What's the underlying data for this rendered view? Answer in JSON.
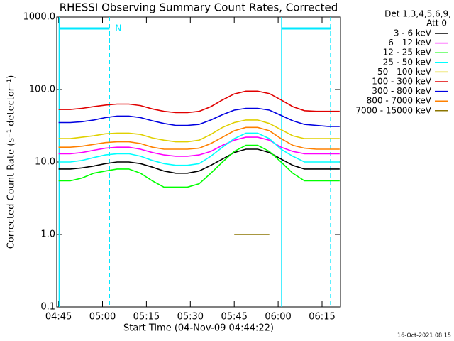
{
  "chart_data": {
    "type": "line",
    "title": "RHESSI Observing Summary Count Rates, Corrected",
    "x_label": "Start Time (04-Nov-09 04:44:22)",
    "y_label": "Corrected Count Rate (s⁻¹ detector⁻¹)",
    "legend_header": [
      "Det 1,3,4,5,6,9,",
      "Att 0"
    ],
    "footer": "16-Oct-2021 08:15",
    "log_scale_y": true,
    "xlim": [
      284.37,
      381.3
    ],
    "xticks": [
      {
        "value": 285,
        "label": "04:45"
      },
      {
        "value": 300,
        "label": "05:00"
      },
      {
        "value": 315,
        "label": "05:15"
      },
      {
        "value": 330,
        "label": "05:30"
      },
      {
        "value": 345,
        "label": "05:45"
      },
      {
        "value": 360,
        "label": "06:00"
      },
      {
        "value": 375,
        "label": "06:15"
      }
    ],
    "ylim": [
      0.1,
      1000
    ],
    "yticks": [
      0.1,
      {
        "value": 1,
        "label": "1.0"
      },
      {
        "value": 10,
        "label": "10.0"
      },
      {
        "value": 100,
        "label": "100.0"
      },
      {
        "value": 1000,
        "label": "1000.0"
      }
    ],
    "night_label": "N",
    "night_color": "#00e8ff",
    "night_intervals": [
      {
        "start": 285.2,
        "end": 302.4
      },
      {
        "start": 361.2,
        "end": 377.9
      }
    ],
    "x": [
      285,
      289,
      293,
      297,
      301,
      305,
      309,
      313,
      317,
      321,
      325,
      329,
      333,
      337,
      341,
      345,
      349,
      353,
      357,
      361,
      365,
      369,
      373,
      377,
      381
    ],
    "series": [
      {
        "name": "3 - 6 keV",
        "color": "#000000",
        "values": [
          8,
          8,
          8.3,
          8.8,
          9.5,
          10,
          10,
          9.5,
          8.5,
          7.5,
          7,
          7,
          7.5,
          9,
          11,
          13.5,
          15,
          15,
          13.5,
          11,
          9,
          8,
          8,
          8,
          8
        ]
      },
      {
        "name": "6 - 12 keV",
        "color": "#ff00ff",
        "values": [
          13,
          13,
          13.5,
          14.5,
          15.5,
          16,
          16,
          15,
          13.5,
          12.5,
          12,
          12,
          12.5,
          14,
          17,
          20,
          22,
          22,
          20,
          16,
          14,
          13,
          13,
          13,
          13
        ]
      },
      {
        "name": "12 - 25 keV",
        "color": "#00ff00",
        "values": [
          5.5,
          5.5,
          6,
          7,
          7.5,
          8,
          8,
          7,
          5.5,
          4.5,
          4.5,
          4.5,
          5,
          7,
          10,
          14,
          17,
          17,
          14,
          10,
          7,
          5.5,
          5.5,
          5.5,
          5.5
        ]
      },
      {
        "name": "25 - 50 keV",
        "color": "#00ffff",
        "values": [
          10,
          10,
          10.5,
          11.5,
          12.5,
          13,
          13,
          12,
          10.5,
          9.5,
          9,
          9,
          9.5,
          12,
          16,
          21,
          25,
          25,
          21,
          15,
          12,
          10,
          10,
          10,
          10
        ]
      },
      {
        "name": "50 - 100 keV",
        "color": "#e0d000",
        "values": [
          21,
          21,
          22,
          23,
          24.5,
          25,
          25,
          24,
          21.5,
          20,
          19,
          19,
          20,
          24,
          30,
          35,
          38,
          38,
          34,
          28,
          23,
          21,
          21,
          21,
          21
        ]
      },
      {
        "name": "100 - 300 keV",
        "color": "#e00000",
        "values": [
          53,
          53,
          55,
          58,
          61,
          63,
          63,
          60,
          54,
          50,
          48,
          48,
          50,
          58,
          72,
          87,
          95,
          95,
          88,
          72,
          58,
          51,
          50,
          50,
          50
        ]
      },
      {
        "name": "300 - 800 keV",
        "color": "#0000e0",
        "values": [
          35,
          35,
          36,
          38,
          41,
          43,
          43,
          41,
          37,
          34,
          32,
          32,
          33,
          38,
          45,
          52,
          55,
          55,
          52,
          44,
          37,
          33,
          32,
          31,
          31
        ]
      },
      {
        "name": "800 - 7000 keV",
        "color": "#ff8000",
        "values": [
          16,
          16,
          16.5,
          17.5,
          18.5,
          19,
          19,
          18,
          16,
          15,
          15,
          15,
          15.5,
          18,
          22,
          27,
          30,
          30,
          27,
          21,
          17,
          15.5,
          15,
          15,
          15
        ]
      },
      {
        "name": "7000 - 15000 keV",
        "color": "#8b7500",
        "values": [
          null,
          null,
          null,
          null,
          null,
          null,
          null,
          null,
          null,
          null,
          null,
          null,
          null,
          null,
          null,
          1,
          1,
          1,
          1,
          null,
          null,
          null,
          null,
          null,
          null
        ]
      }
    ]
  }
}
